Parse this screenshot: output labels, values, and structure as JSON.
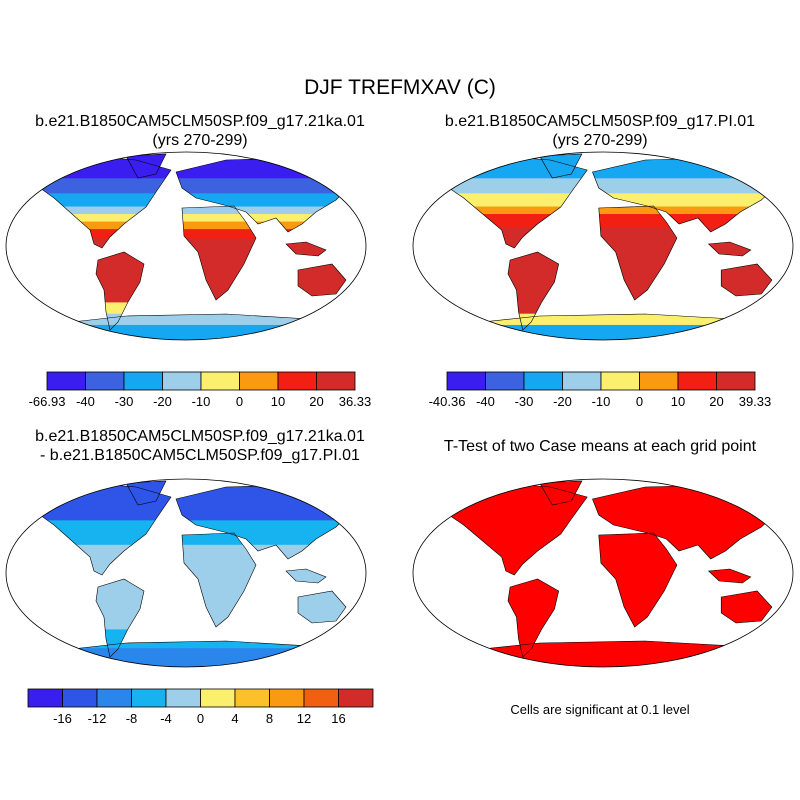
{
  "title": "DJF TREFMXAV (C)",
  "panels": [
    {
      "id": "case1",
      "title_lines": [
        "b.e21.B1850CAM5CLM50SP.f09_g17.21ka.01",
        "(yrs 270-299)"
      ],
      "colorbar": {
        "colors": [
          "#3a1ef0",
          "#3d62e0",
          "#16a7f2",
          "#9dcfea",
          "#fbef6e",
          "#f99a11",
          "#f21f12",
          "#d32a2a"
        ],
        "labels": [
          "-66.93",
          "-40",
          "-30",
          "-20",
          "-10",
          "0",
          "10",
          "20",
          "36.33"
        ]
      }
    },
    {
      "id": "case2",
      "title_lines": [
        "b.e21.B1850CAM5CLM50SP.f09_g17.PI.01",
        "(yrs 270-299)"
      ],
      "colorbar": {
        "colors": [
          "#3a1ef0",
          "#3d62e0",
          "#16a7f2",
          "#9dcfea",
          "#fbef6e",
          "#f99a11",
          "#f21f12",
          "#d32a2a"
        ],
        "labels": [
          "-40.36",
          "-40",
          "-30",
          "-20",
          "-10",
          "0",
          "10",
          "20",
          "39.33"
        ]
      }
    },
    {
      "id": "difference",
      "title_lines": [
        "b.e21.B1850CAM5CLM50SP.f09_g17.21ka.01",
        "- b.e21.B1850CAM5CLM50SP.f09_g17.PI.01"
      ],
      "colorbar": {
        "colors": [
          "#3a1ef0",
          "#2f55e8",
          "#2a86ea",
          "#16b3f0",
          "#9dcfea",
          "#fbef6e",
          "#fcc12a",
          "#f99a11",
          "#f06010",
          "#d32a2a"
        ],
        "labels": [
          "-16",
          "-12",
          "-8",
          "-4",
          "0",
          "4",
          "8",
          "12",
          "16"
        ]
      }
    },
    {
      "id": "ttest",
      "title_lines": [
        "T-Test of two Case means at each grid point"
      ],
      "footnote": "Cells are significant at 0.1 level"
    }
  ],
  "map_colors": {
    "ocean": "#ffffff",
    "outline": "#000000",
    "significant": "#ff0000"
  }
}
